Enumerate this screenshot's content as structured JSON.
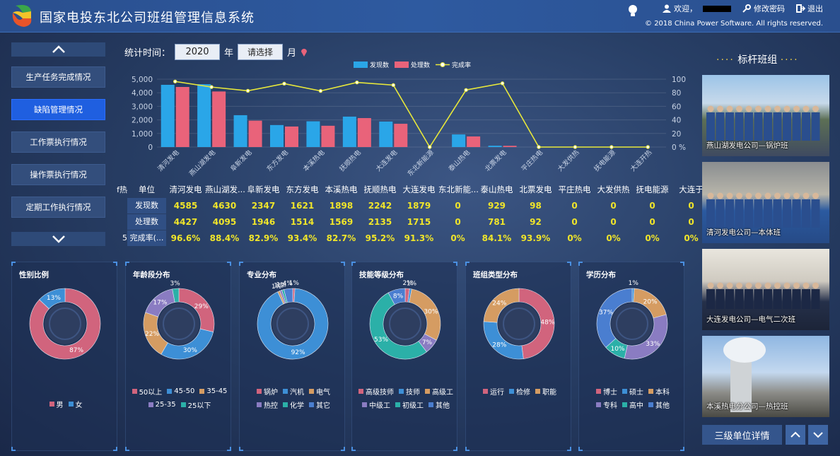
{
  "header": {
    "title": "国家电投东北公司班组管理信息系统",
    "welcome": "欢迎，",
    "change_password": "修改密码",
    "logout": "退出",
    "copyright": "© 2018 China Power Software. All rights reserved."
  },
  "nav": {
    "items": [
      "生产任务完成情况",
      "缺陷管理情况",
      "工作票执行情况",
      "操作票执行情况",
      "定期工作执行情况"
    ],
    "active": "缺陷管理情况"
  },
  "filter": {
    "label": "统计时间：",
    "year": "2020",
    "year_unit": "年",
    "month_placeholder": "请选择",
    "month_unit": "月"
  },
  "chart_data": {
    "type": "bar",
    "categories": [
      "清河发电",
      "燕山湖发电",
      "阜新发电",
      "东方发电",
      "本溪热电",
      "抚顺热电",
      "大连发电",
      "东北新能源",
      "泰山热电",
      "北票发电",
      "平庄热电",
      "大发供热",
      "抚电能源",
      "大连开热"
    ],
    "series": [
      {
        "name": "发现数",
        "values": [
          4585,
          4630,
          2347,
          1621,
          1898,
          2242,
          1879,
          0,
          929,
          98,
          0,
          0,
          0,
          0
        ],
        "color": "#2aa6e8"
      },
      {
        "name": "处理数",
        "values": [
          4427,
          4095,
          1946,
          1514,
          1569,
          2135,
          1715,
          0,
          781,
          92,
          0,
          0,
          0,
          0
        ],
        "color": "#e9637a"
      },
      {
        "name": "完成率",
        "values": [
          96.6,
          88.4,
          82.9,
          93.4,
          82.7,
          95.2,
          91.3,
          0,
          84.1,
          93.9,
          0,
          0,
          0,
          0
        ],
        "color": "#e8e83a"
      }
    ],
    "yticks_left": [
      "5,000",
      "4,000",
      "3,000",
      "2,000",
      "1,000",
      "0"
    ],
    "yticks_right": [
      "100",
      "80",
      "60",
      "40",
      "20",
      "0 %"
    ],
    "ylim": [
      0,
      5000
    ],
    "ylim_right": [
      0,
      100
    ]
  },
  "table": {
    "cut_head": "f热",
    "cut_rate": "5",
    "headers": [
      "单位",
      "清河发电",
      "燕山湖发...",
      "阜新发电",
      "东方发电",
      "本溪热电",
      "抚顺热电",
      "大连发电",
      "东北新能...",
      "泰山热电",
      "北票发电",
      "平庄热电",
      "大发供热",
      "抚电能源",
      "大连于"
    ],
    "rows": [
      {
        "label": "发现数",
        "values": [
          "4585",
          "4630",
          "2347",
          "1621",
          "1898",
          "2242",
          "1879",
          "0",
          "929",
          "98",
          "0",
          "0",
          "0",
          "0"
        ]
      },
      {
        "label": "处理数",
        "values": [
          "4427",
          "4095",
          "1946",
          "1514",
          "1569",
          "2135",
          "1715",
          "0",
          "781",
          "92",
          "0",
          "0",
          "0",
          "0"
        ]
      },
      {
        "label": "完成率(...",
        "values": [
          "96.6%",
          "88.4%",
          "82.9%",
          "93.4%",
          "82.7%",
          "95.2%",
          "91.3%",
          "0%",
          "84.1%",
          "93.9%",
          "0%",
          "0%",
          "0%",
          "0%"
        ]
      }
    ]
  },
  "pies": [
    {
      "title": "性别比例",
      "slices": [
        {
          "name": "男",
          "pct": 87,
          "color": "#d1647d"
        },
        {
          "name": "女",
          "pct": 13,
          "color": "#3d8fd6"
        }
      ]
    },
    {
      "title": "年龄段分布",
      "slices": [
        {
          "name": "50以上",
          "pct": 29,
          "color": "#d1647d"
        },
        {
          "name": "45-50",
          "pct": 30,
          "color": "#3d8fd6"
        },
        {
          "name": "35-45",
          "pct": 22,
          "color": "#d59c62"
        },
        {
          "name": "25-35",
          "pct": 17,
          "color": "#8a7cc2"
        },
        {
          "name": "25以下",
          "pct": 3,
          "color": "#2bb0a8"
        }
      ]
    },
    {
      "title": "专业分布",
      "slices": [
        {
          "name": "锅炉",
          "pct": 1,
          "color": "#d1647d"
        },
        {
          "name": "汽机",
          "pct": 92,
          "color": "#3d8fd6"
        },
        {
          "name": "电气",
          "pct": 1,
          "color": "#d59c62"
        },
        {
          "name": "热控",
          "pct": 1,
          "color": "#8a7cc2"
        },
        {
          "name": "化学",
          "pct": 1,
          "color": "#2bb0a8"
        },
        {
          "name": "其它",
          "pct": 4,
          "color": "#4a7ed0"
        }
      ]
    },
    {
      "title": "技能等级分布",
      "slices": [
        {
          "name": "高级技师",
          "pct": 2,
          "color": "#d1647d"
        },
        {
          "name": "技师",
          "pct": 1,
          "color": "#3d8fd6"
        },
        {
          "name": "高级工",
          "pct": 30,
          "color": "#d59c62"
        },
        {
          "name": "中级工",
          "pct": 7,
          "color": "#8a7cc2"
        },
        {
          "name": "初级工",
          "pct": 53,
          "color": "#2bb0a8"
        },
        {
          "name": "其他",
          "pct": 8,
          "color": "#4a7ed0"
        }
      ]
    },
    {
      "title": "班组类型分布",
      "slices": [
        {
          "name": "运行",
          "pct": 48,
          "color": "#d1647d"
        },
        {
          "name": "检修",
          "pct": 28,
          "color": "#3d8fd6"
        },
        {
          "name": "职能",
          "pct": 24,
          "color": "#d59c62"
        }
      ]
    },
    {
      "title": "学历分布",
      "slices": [
        {
          "name": "博士",
          "pct": 0,
          "color": "#d1647d"
        },
        {
          "name": "硕士",
          "pct": 1,
          "color": "#3d8fd6"
        },
        {
          "name": "本科",
          "pct": 20,
          "color": "#d59c62"
        },
        {
          "name": "专科",
          "pct": 33,
          "color": "#8a7cc2"
        },
        {
          "name": "高中",
          "pct": 10,
          "color": "#2bb0a8"
        },
        {
          "name": "其他",
          "pct": 37,
          "color": "#4a7ed0"
        }
      ]
    }
  ],
  "right": {
    "title": "标杆班组",
    "photos": [
      "燕山湖发电公司—锅炉班",
      "清河发电公司—本体班",
      "大连发电公司—电气二次班",
      "本溪热电分公司—热控班"
    ],
    "detail_button": "三级单位详情"
  }
}
